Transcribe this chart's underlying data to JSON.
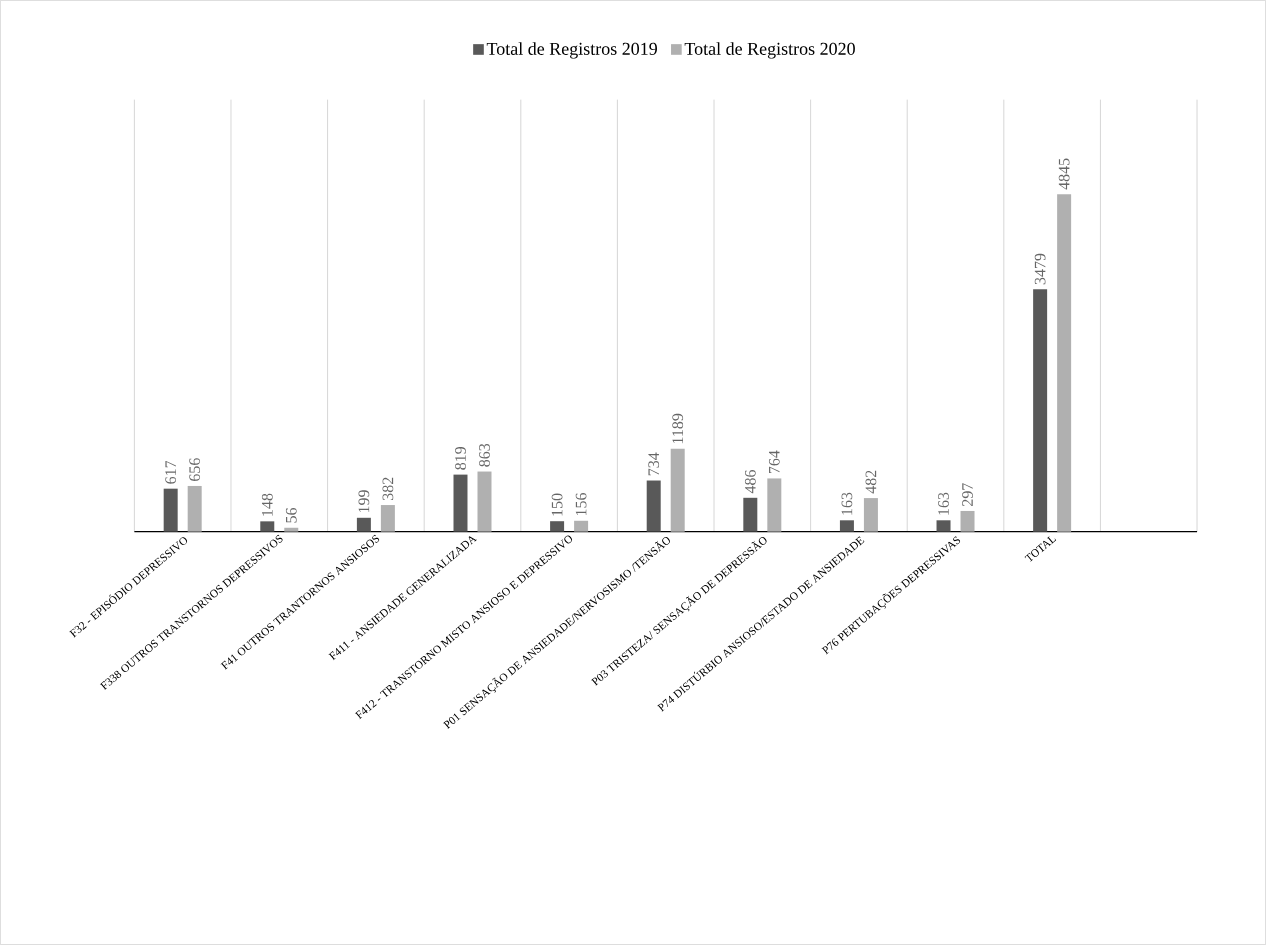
{
  "chart_data": {
    "type": "bar",
    "categories": [
      "F32 - EPISÓDIO DEPRESSIVO",
      "F338 OUTROS TRANSTORNOS DEPRESSIVOS",
      "F41 OUTROS  TRANTORNOS ANSIOSOS",
      "F411 - ANSIEDADE GENERALIZADA",
      "F412 - TRANSTORNO MISTO ANSIOSO E DEPRESSIVO",
      "P01 SENSAÇÃO DE ANSIEDADE/NERVOSISMO /TENSÃO",
      "P03 TRISTEZA/ SENSAÇÃO DE DEPRESSÃO",
      "P74 DISTÚRBIO ANSIOSO/ESTADO DE ANSIEDADE",
      "P76 PERTUBAÇÕES DEPRESSIVAS",
      "TOTAL",
      null
    ],
    "series": [
      {
        "name": "Total de Registros 2019",
        "color": "#595959",
        "values": [
          617,
          148,
          199,
          819,
          150,
          734,
          486,
          163,
          163,
          3479,
          null
        ]
      },
      {
        "name": "Total de Registros 2020",
        "color": "#b0b0b0",
        "values": [
          656,
          56,
          382,
          863,
          156,
          1189,
          764,
          482,
          297,
          4845,
          null
        ]
      }
    ],
    "data_labels": true,
    "grid": "x",
    "legend": "top"
  }
}
